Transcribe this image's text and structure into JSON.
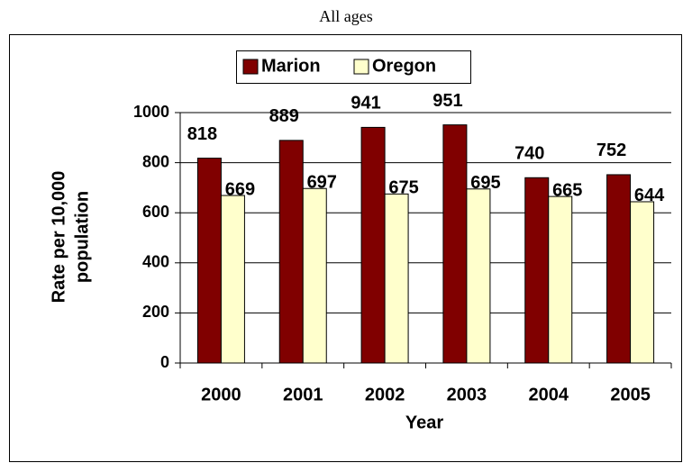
{
  "chart_data": {
    "type": "bar",
    "title": "All ages",
    "categories": [
      "2000",
      "2001",
      "2002",
      "2003",
      "2004",
      "2005"
    ],
    "series": [
      {
        "name": "Marion",
        "color": "#800000",
        "values": [
          818,
          889,
          941,
          951,
          740,
          752
        ]
      },
      {
        "name": "Oregon",
        "color": "#ffffcc",
        "values": [
          669,
          697,
          675,
          695,
          665,
          644
        ]
      }
    ],
    "xlabel": "Year",
    "ylabel": [
      "Rate per 10,000",
      "population"
    ],
    "ylim": [
      0,
      1000
    ],
    "yticks": [
      0,
      200,
      400,
      600,
      800,
      1000
    ],
    "grid": true,
    "legend": "top"
  }
}
